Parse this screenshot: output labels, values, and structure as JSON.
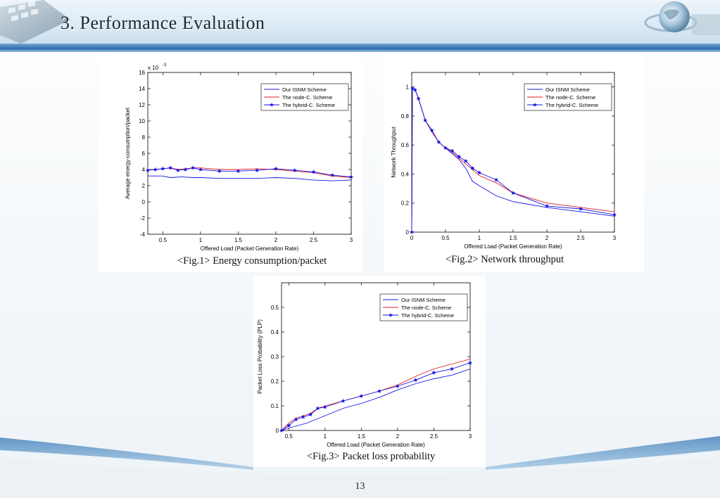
{
  "slide": {
    "title": "3.  Performance Evaluation",
    "page_number": "13"
  },
  "decor": {
    "left_image": "keyboard-icon",
    "right_image": "globe-icon",
    "band_color": "#2f6fae"
  },
  "colors": {
    "isnm": "#1414e6",
    "nodec": "#e21b1b",
    "hybrid": "#1414e6"
  },
  "chart_data": [
    {
      "type": "line",
      "caption": "<Fig.1> Energy consumption/packet",
      "xlabel": "Offered Load (Packet Generation Rate)",
      "ylabel": "Average energy-consumption/packet",
      "exponent_label": "x 10",
      "exponent_power": "-3",
      "xlim": [
        0.3,
        3
      ],
      "ylim": [
        -4,
        16
      ],
      "xticks": [
        0.5,
        1,
        1.5,
        2,
        2.5,
        3
      ],
      "xtick_labels": [
        "0.5",
        "1",
        "1.5",
        "2",
        "2.5",
        "3"
      ],
      "yticks": [
        -4,
        -2,
        0,
        2,
        4,
        6,
        8,
        10,
        12,
        14,
        16
      ],
      "ytick_labels": [
        "-4",
        "-2",
        "0",
        "2",
        "4",
        "6",
        "8",
        "10",
        "12",
        "14",
        "16"
      ],
      "legend_position": "top-right",
      "series": [
        {
          "name": "Our ISNM Scheme",
          "marker": "none",
          "x": [
            0.3,
            0.5,
            0.6,
            0.75,
            0.9,
            1.0,
            1.25,
            1.5,
            1.75,
            2.0,
            2.25,
            2.5,
            2.75,
            3.0
          ],
          "y": [
            3.2,
            3.2,
            3.0,
            3.1,
            3.0,
            3.0,
            2.9,
            2.9,
            2.9,
            3.0,
            2.9,
            2.7,
            2.6,
            2.7
          ]
        },
        {
          "name": "The node-C. Scheme",
          "marker": "none",
          "x": [
            0.3,
            0.4,
            0.5,
            0.6,
            0.7,
            0.8,
            0.9,
            1.0,
            1.25,
            1.5,
            1.75,
            2.0,
            2.25,
            2.5,
            2.75,
            3.0
          ],
          "y": [
            4.0,
            4.0,
            4.1,
            4.2,
            4.0,
            4.1,
            4.2,
            4.2,
            4.0,
            4.0,
            4.1,
            4.0,
            3.8,
            3.6,
            3.2,
            3.0
          ]
        },
        {
          "name": "The hybrid-C. Scheme",
          "marker": "star",
          "x": [
            0.3,
            0.4,
            0.5,
            0.6,
            0.7,
            0.8,
            0.9,
            1.0,
            1.25,
            1.5,
            1.75,
            2.0,
            2.25,
            2.5,
            2.75,
            3.0
          ],
          "y": [
            3.9,
            4.0,
            4.1,
            4.2,
            3.9,
            4.0,
            4.2,
            4.0,
            3.8,
            3.8,
            3.9,
            4.1,
            3.9,
            3.7,
            3.3,
            3.1
          ]
        }
      ]
    },
    {
      "type": "line",
      "caption": "<Fig.2> Network throughput",
      "xlabel": "Offered Load (Packet Generation Rate)",
      "ylabel": "Network Throughput",
      "xlim": [
        0,
        3
      ],
      "ylim": [
        0,
        1.1
      ],
      "xticks": [
        0,
        0.5,
        1,
        1.5,
        2,
        2.5,
        3
      ],
      "xtick_labels": [
        "0",
        "0.5",
        "1",
        "1.5",
        "2",
        "2.5",
        "3"
      ],
      "yticks": [
        0,
        0.2,
        0.4,
        0.6,
        0.8,
        1
      ],
      "ytick_labels": [
        "0",
        "0.2",
        "0.4",
        "0.6",
        "0.8",
        "1"
      ],
      "legend_position": "top-right",
      "series": [
        {
          "name": "Our ISNM Scheme",
          "marker": "none",
          "x": [
            0,
            0.01,
            0.05,
            0.1,
            0.2,
            0.3,
            0.4,
            0.5,
            0.6,
            0.7,
            0.8,
            0.9,
            1.0,
            1.25,
            1.5,
            2.0,
            2.5,
            3.0
          ],
          "y": [
            0,
            0.99,
            0.98,
            0.92,
            0.77,
            0.69,
            0.62,
            0.58,
            0.54,
            0.5,
            0.44,
            0.35,
            0.32,
            0.25,
            0.21,
            0.17,
            0.14,
            0.11
          ]
        },
        {
          "name": "The node-C. Scheme",
          "marker": "none",
          "x": [
            0,
            0.01,
            0.05,
            0.1,
            0.2,
            0.3,
            0.4,
            0.5,
            0.6,
            0.7,
            0.8,
            0.9,
            1.0,
            1.25,
            1.5,
            2.0,
            2.5,
            3.0
          ],
          "y": [
            0,
            0.99,
            0.98,
            0.92,
            0.77,
            0.69,
            0.62,
            0.58,
            0.55,
            0.51,
            0.47,
            0.43,
            0.39,
            0.34,
            0.27,
            0.2,
            0.17,
            0.14
          ]
        },
        {
          "name": "The hybrid-C. Scheme",
          "marker": "star",
          "x": [
            0,
            0.01,
            0.05,
            0.1,
            0.2,
            0.3,
            0.4,
            0.5,
            0.6,
            0.7,
            0.8,
            0.9,
            1.0,
            1.25,
            1.5,
            2.0,
            2.5,
            3.0
          ],
          "y": [
            0,
            0.99,
            0.98,
            0.92,
            0.77,
            0.7,
            0.62,
            0.58,
            0.56,
            0.52,
            0.49,
            0.44,
            0.41,
            0.36,
            0.27,
            0.18,
            0.16,
            0.12
          ]
        }
      ]
    },
    {
      "type": "line",
      "caption": "<Fig.3> Packet loss probability",
      "xlabel": "Offered Load (Packet Generation Rate)",
      "ylabel": "Packet Loss Probability (PLP)",
      "xlim": [
        0.4,
        3
      ],
      "ylim": [
        0,
        0.6
      ],
      "xticks": [
        0.5,
        1,
        1.5,
        2,
        2.5,
        3
      ],
      "xtick_labels": [
        "0.5",
        "1",
        "1.5",
        "2",
        "2.5",
        "3"
      ],
      "yticks": [
        0,
        0.1,
        0.2,
        0.3,
        0.4,
        0.5
      ],
      "ytick_labels": [
        "0",
        "0.1",
        "0.2",
        "0.3",
        "0.4",
        "0.5"
      ],
      "legend_position": "top-right",
      "series": [
        {
          "name": "Our ISNM Scheme",
          "marker": "none",
          "x": [
            0.4,
            0.5,
            0.75,
            1.0,
            1.25,
            1.5,
            1.75,
            2.0,
            2.25,
            2.5,
            2.75,
            3.0
          ],
          "y": [
            0.0,
            0.01,
            0.03,
            0.06,
            0.09,
            0.11,
            0.135,
            0.165,
            0.19,
            0.21,
            0.225,
            0.25
          ]
        },
        {
          "name": "The node-C. Scheme",
          "marker": "none",
          "x": [
            0.4,
            0.5,
            0.6,
            0.7,
            0.8,
            0.9,
            1.0,
            1.25,
            1.5,
            1.75,
            2.0,
            2.25,
            2.5,
            2.75,
            3.0
          ],
          "y": [
            0.0,
            0.03,
            0.05,
            0.06,
            0.07,
            0.09,
            0.1,
            0.12,
            0.14,
            0.16,
            0.185,
            0.22,
            0.25,
            0.27,
            0.29
          ]
        },
        {
          "name": "The hybrid-C. Scheme",
          "marker": "star",
          "x": [
            0.4,
            0.5,
            0.6,
            0.7,
            0.8,
            0.9,
            1.0,
            1.25,
            1.5,
            1.75,
            2.0,
            2.25,
            2.5,
            2.75,
            3.0
          ],
          "y": [
            0.0,
            0.02,
            0.045,
            0.055,
            0.065,
            0.09,
            0.095,
            0.12,
            0.14,
            0.16,
            0.18,
            0.205,
            0.235,
            0.25,
            0.275
          ]
        }
      ]
    }
  ]
}
